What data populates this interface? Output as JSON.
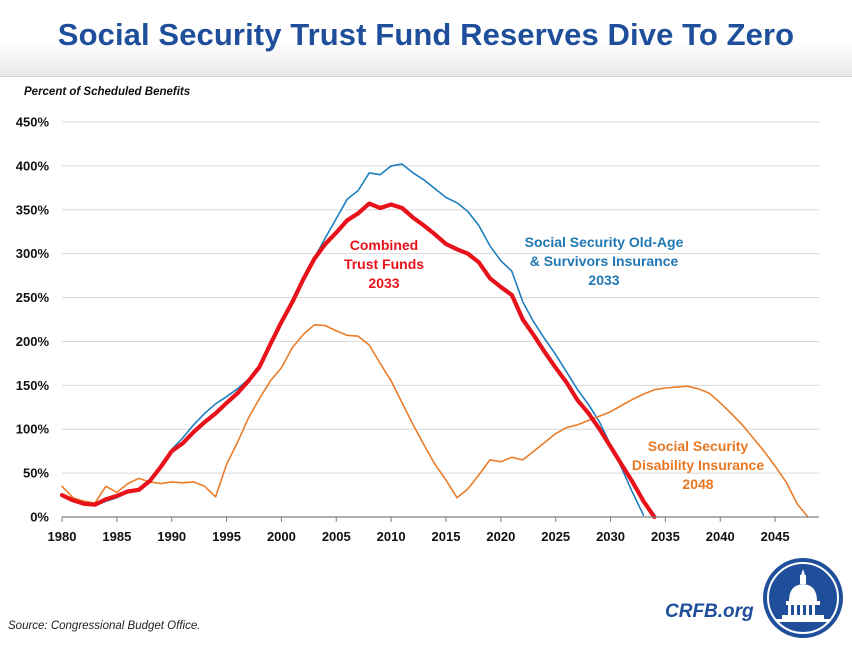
{
  "header": {
    "title": "Social Security Trust Fund Reserves Dive To Zero"
  },
  "footer": {
    "source": "Source: Congressional Budget Office.",
    "brand": "CRFB.org"
  },
  "logo": {
    "icon": "capitol-dome-icon"
  },
  "chart_data": {
    "type": "line",
    "unit_label": "Percent of Scheduled  Benefits",
    "xlim": [
      1980,
      2049
    ],
    "ylim": [
      0,
      450
    ],
    "x_ticks": [
      "1980",
      "1985",
      "1990",
      "1995",
      "2000",
      "2005",
      "2010",
      "2015",
      "2020",
      "2025",
      "2030",
      "2035",
      "2040",
      "2045"
    ],
    "y_ticks": [
      "0%",
      "50%",
      "100%",
      "150%",
      "200%",
      "250%",
      "300%",
      "350%",
      "400%",
      "450%"
    ],
    "grid": "horizontal",
    "annotations": [
      {
        "series": "oasi",
        "lines": [
          "Social Security Old-Age",
          "& Survivors Insurance",
          "2033"
        ],
        "color": "#1f77b4"
      },
      {
        "series": "combined",
        "lines": [
          "Combined",
          "Trust Funds",
          "2033"
        ],
        "color": "#e8121b"
      },
      {
        "series": "di",
        "lines": [
          "Social Security",
          "Disability Insurance",
          "2048"
        ],
        "color": "#e87722"
      }
    ],
    "series": [
      {
        "key": "oasi",
        "color": "#1f7fbe",
        "x": [
          1980,
          1981,
          1982,
          1983,
          1984,
          1985,
          1986,
          1987,
          1988,
          1989,
          1990,
          1991,
          1992,
          1993,
          1994,
          1995,
          1996,
          1997,
          1998,
          1999,
          2000,
          2001,
          2002,
          2003,
          2004,
          2005,
          2006,
          2007,
          2008,
          2009,
          2010,
          2011,
          2012,
          2013,
          2014,
          2015,
          2016,
          2017,
          2018,
          2019,
          2020,
          2021,
          2022,
          2023,
          2024,
          2025,
          2026,
          2027,
          2028,
          2029,
          2030,
          2031,
          2032,
          2033
        ],
        "y": [
          24,
          18,
          15,
          13,
          18,
          22,
          28,
          32,
          42,
          58,
          77,
          90,
          105,
          118,
          129,
          137,
          146,
          157,
          170,
          195,
          220,
          245,
          270,
          295,
          318,
          340,
          362,
          372,
          392,
          390,
          400,
          402,
          392,
          384,
          374,
          364,
          358,
          348,
          332,
          309,
          292,
          280,
          245,
          222,
          203,
          185,
          165,
          145,
          128,
          108,
          82,
          56,
          28,
          2
        ]
      },
      {
        "key": "di",
        "color": "#ea7d2a",
        "x": [
          1980,
          1981,
          1982,
          1983,
          1984,
          1985,
          1986,
          1987,
          1988,
          1989,
          1990,
          1991,
          1992,
          1993,
          1994,
          1995,
          1996,
          1997,
          1998,
          1999,
          2000,
          2001,
          2002,
          2003,
          2004,
          2005,
          2006,
          2007,
          2008,
          2009,
          2010,
          2011,
          2012,
          2013,
          2014,
          2015,
          2016,
          2017,
          2018,
          2019,
          2020,
          2021,
          2022,
          2023,
          2024,
          2025,
          2026,
          2027,
          2028,
          2029,
          2030,
          2031,
          2032,
          2033,
          2034,
          2035,
          2036,
          2037,
          2038,
          2039,
          2040,
          2041,
          2042,
          2043,
          2044,
          2045,
          2046,
          2047,
          2048
        ],
        "y": [
          35,
          22,
          18,
          16,
          35,
          28,
          38,
          44,
          40,
          38,
          40,
          39,
          40,
          35,
          23,
          60,
          85,
          113,
          135,
          155,
          170,
          193,
          208,
          219,
          218,
          212,
          207,
          206,
          196,
          175,
          155,
          130,
          105,
          82,
          60,
          42,
          22,
          32,
          48,
          65,
          63,
          68,
          65,
          75,
          85,
          95,
          102,
          105,
          110,
          115,
          120,
          127,
          134,
          140,
          145,
          147,
          148,
          149,
          146,
          141,
          130,
          118,
          105,
          90,
          75,
          58,
          40,
          15,
          0
        ]
      },
      {
        "key": "combined",
        "color": "#e8121b",
        "x": [
          1980,
          1981,
          1982,
          1983,
          1984,
          1985,
          1986,
          1987,
          1988,
          1989,
          1990,
          1991,
          1992,
          1993,
          1994,
          1995,
          1996,
          1997,
          1998,
          1999,
          2000,
          2001,
          2002,
          2003,
          2004,
          2005,
          2006,
          2007,
          2008,
          2009,
          2010,
          2011,
          2012,
          2013,
          2014,
          2015,
          2016,
          2017,
          2018,
          2019,
          2020,
          2021,
          2022,
          2023,
          2024,
          2025,
          2026,
          2027,
          2028,
          2029,
          2030,
          2031,
          2032,
          2033,
          2034
        ],
        "y": [
          25,
          19,
          15,
          14,
          20,
          24,
          29,
          31,
          41,
          57,
          75,
          84,
          97,
          108,
          118,
          130,
          141,
          155,
          171,
          197,
          222,
          245,
          271,
          294,
          311,
          324,
          338,
          346,
          357,
          352,
          356,
          352,
          341,
          332,
          322,
          311,
          305,
          300,
          290,
          272,
          262,
          253,
          225,
          207,
          188,
          170,
          153,
          133,
          118,
          100,
          80,
          60,
          40,
          18,
          0
        ]
      }
    ]
  }
}
